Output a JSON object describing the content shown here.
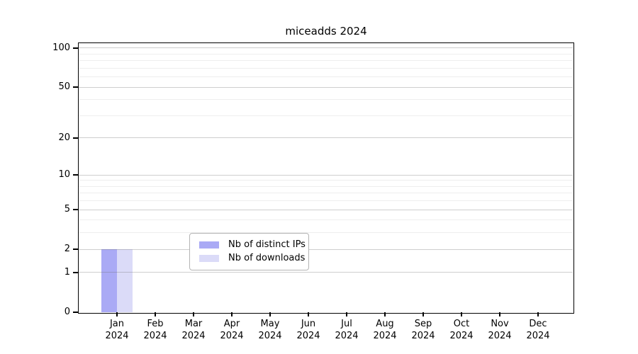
{
  "chart_data": {
    "type": "bar",
    "title": "miceadds 2024",
    "categories": [
      "Jan 2024",
      "Feb 2024",
      "Mar 2024",
      "Apr 2024",
      "May 2024",
      "Jun 2024",
      "Jul 2024",
      "Aug 2024",
      "Sep 2024",
      "Oct 2024",
      "Nov 2024",
      "Dec 2024"
    ],
    "series": [
      {
        "name": "Nb of distinct IPs",
        "color": "#aaaaf5",
        "values": [
          2,
          0,
          0,
          0,
          0,
          0,
          0,
          0,
          0,
          0,
          0,
          0
        ]
      },
      {
        "name": "Nb of downloads",
        "color": "#dbdbf8",
        "values": [
          2,
          0,
          0,
          0,
          0,
          0,
          0,
          0,
          0,
          0,
          0,
          0
        ]
      }
    ],
    "xlabel": "",
    "ylabel": "",
    "yscale": "log1p",
    "ylim": [
      0,
      113
    ],
    "y_ticks": [
      0,
      1,
      2,
      5,
      10,
      20,
      50,
      100
    ],
    "y_minor_ticks": [
      3,
      4,
      6,
      7,
      8,
      9,
      30,
      40,
      60,
      70,
      80,
      90
    ],
    "grid": true,
    "legend_position": "inside-bottom-center",
    "colors": {
      "spine": "#000000",
      "major_grid": "#cdcdcd",
      "minor_grid": "#ebebeb",
      "legend_border": "#b4b4b4",
      "background": "#ffffff"
    }
  }
}
